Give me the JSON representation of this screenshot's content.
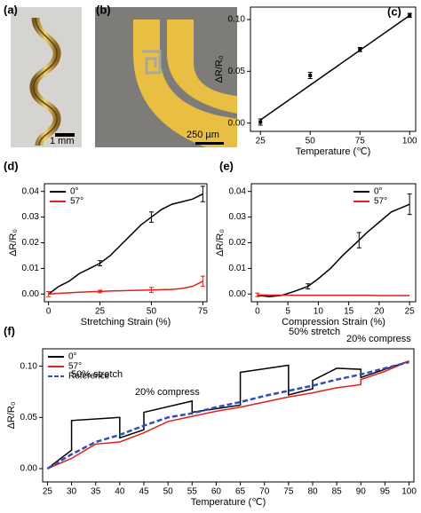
{
  "panel_labels": [
    "(a)",
    "(b)",
    "(c)",
    "(d)",
    "(e)",
    "(f)"
  ],
  "scale_bars": [
    "1 mm",
    "250 µm"
  ],
  "chart_data": [
    {
      "type": "scatter",
      "ylabel": "ΔR/R₀",
      "xlabel": "Temperature (℃)",
      "x": [
        25,
        50,
        75,
        100
      ],
      "values": [
        0.001,
        0.046,
        0.071,
        0.104
      ],
      "errors": [
        0.003,
        0.003,
        0.002,
        0.002
      ],
      "fit_line": {
        "x": [
          25,
          100
        ],
        "values": [
          0.003,
          0.104
        ]
      },
      "color": "#000000",
      "xlim": [
        20,
        103
      ],
      "ylim": [
        -0.008,
        0.112
      ],
      "xticks": [
        25,
        50,
        75,
        100
      ],
      "yticks": [
        {
          "value": 0,
          "label": "0.00"
        },
        {
          "value": 0.05,
          "label": "0.05"
        },
        {
          "value": 0.1,
          "label": "0.10"
        }
      ]
    },
    {
      "type": "line",
      "ylabel": "ΔR/R₀",
      "xlabel": "Stretching Strain (%)",
      "x": [
        0,
        5,
        10,
        15,
        20,
        25,
        30,
        35,
        40,
        45,
        50,
        55,
        60,
        65,
        70,
        75
      ],
      "series": [
        {
          "name": "0°",
          "color": "#000000",
          "values": [
            0,
            0.003,
            0.005,
            0.008,
            0.01,
            0.012,
            0.015,
            0.019,
            0.023,
            0.027,
            0.03,
            0.033,
            0.035,
            0.036,
            0.037,
            0.039
          ],
          "errors": [
            null,
            null,
            null,
            null,
            null,
            0.001,
            null,
            null,
            null,
            null,
            0.002,
            null,
            null,
            null,
            null,
            0.003
          ]
        },
        {
          "name": "57°",
          "color": "#e0201b",
          "values": [
            0,
            0.0003,
            0.0005,
            0.0007,
            0.0009,
            0.001,
            0.0012,
            0.0013,
            0.0014,
            0.0015,
            0.0016,
            0.0017,
            0.0018,
            0.0022,
            0.003,
            0.005
          ],
          "errors": [
            0.001,
            null,
            null,
            null,
            null,
            0.0005,
            null,
            null,
            null,
            null,
            0.001,
            null,
            null,
            null,
            null,
            0.002
          ]
        }
      ],
      "legend": "top-left",
      "xlim": [
        -2,
        77
      ],
      "ylim": [
        -0.003,
        0.043
      ],
      "xticks": [
        0,
        25,
        50,
        75
      ],
      "yticks": [
        {
          "value": 0,
          "label": "0.00"
        },
        {
          "value": 0.01,
          "label": "0.01"
        },
        {
          "value": 0.02,
          "label": "0.02"
        },
        {
          "value": 0.03,
          "label": "0.03"
        },
        {
          "value": 0.04,
          "label": "0.04"
        }
      ]
    },
    {
      "type": "line",
      "ylabel": "ΔR/R₀",
      "xlabel": "Compression Strain (%)",
      "x": [
        0,
        2,
        4,
        6,
        8.3,
        10,
        12,
        14,
        16.7,
        18,
        20,
        22,
        25
      ],
      "series": [
        {
          "name": "0°",
          "color": "#000000",
          "values": [
            -0.0005,
            -0.001,
            -0.0005,
            0.001,
            0.003,
            0.006,
            0.01,
            0.015,
            0.021,
            0.024,
            0.028,
            0.032,
            0.035
          ],
          "errors": [
            null,
            null,
            null,
            null,
            0.001,
            null,
            null,
            null,
            0.003,
            null,
            null,
            null,
            0.004
          ]
        },
        {
          "name": "57°",
          "color": "#e0201b",
          "values": [
            -0.0003,
            -0.0004,
            -0.0004,
            -0.0005,
            -0.0005,
            -0.0005,
            -0.0005,
            -0.0005,
            -0.0005,
            -0.0005,
            -0.0006,
            -0.0006,
            -0.0006
          ],
          "errors": [
            0.0007,
            null,
            null,
            null,
            null,
            null,
            null,
            null,
            null,
            null,
            null,
            null,
            null
          ]
        }
      ],
      "legend": "top-right",
      "xlim": [
        -1,
        26
      ],
      "ylim": [
        -0.003,
        0.043
      ],
      "xticks": [
        0,
        5,
        10,
        15,
        20,
        25
      ],
      "yticks": [
        {
          "value": 0,
          "label": "0.00"
        },
        {
          "value": 0.01,
          "label": "0.01"
        },
        {
          "value": 0.02,
          "label": "0.02"
        },
        {
          "value": 0.03,
          "label": "0.03"
        },
        {
          "value": 0.04,
          "label": "0.04"
        }
      ]
    },
    {
      "type": "line",
      "ylabel": "ΔR/R₀",
      "xlabel": "Temperature (℃)",
      "series": [
        {
          "name": "0°",
          "color": "#000000",
          "x": [
            25,
            30,
            30,
            40,
            40,
            45,
            45,
            55,
            55,
            65,
            65,
            75,
            75,
            80,
            80,
            85,
            90,
            90,
            95,
            100
          ],
          "values": [
            0,
            0.018,
            0.047,
            0.05,
            0.03,
            0.038,
            0.055,
            0.066,
            0.055,
            0.062,
            0.094,
            0.101,
            0.072,
            0.078,
            0.086,
            0.098,
            0.097,
            0.089,
            0.097,
            0.105
          ]
        },
        {
          "name": "57°",
          "color": "#e0201b",
          "x": [
            25,
            30,
            35,
            40,
            45,
            50,
            55,
            60,
            65,
            70,
            75,
            80,
            85,
            90,
            90,
            95,
            100
          ],
          "values": [
            0,
            0.01,
            0.024,
            0.026,
            0.035,
            0.046,
            0.051,
            0.056,
            0.06,
            0.065,
            0.07,
            0.074,
            0.079,
            0.082,
            0.087,
            0.095,
            0.105
          ]
        },
        {
          "name": "Reference",
          "color": "#2f4fb5",
          "dashed": true,
          "x": [
            25,
            30,
            35,
            40,
            45,
            50,
            55,
            60,
            65,
            70,
            75,
            80,
            85,
            90,
            95,
            100
          ],
          "values": [
            0,
            0.014,
            0.026,
            0.033,
            0.042,
            0.05,
            0.054,
            0.06,
            0.065,
            0.071,
            0.076,
            0.081,
            0.087,
            0.092,
            0.098,
            0.104
          ]
        }
      ],
      "annotations": [
        "50% stretch",
        "20% compress",
        "50% stretch",
        "20% compress"
      ],
      "legend": "top-left",
      "xlim": [
        24,
        101
      ],
      "ylim": [
        -0.013,
        0.117
      ],
      "xticks": [
        25,
        30,
        35,
        40,
        45,
        50,
        55,
        60,
        65,
        70,
        75,
        80,
        85,
        90,
        95,
        100
      ],
      "yticks": [
        {
          "value": 0,
          "label": "0.00"
        },
        {
          "value": 0.05,
          "label": "0.05"
        },
        {
          "value": 0.1,
          "label": "0.10"
        }
      ]
    }
  ]
}
